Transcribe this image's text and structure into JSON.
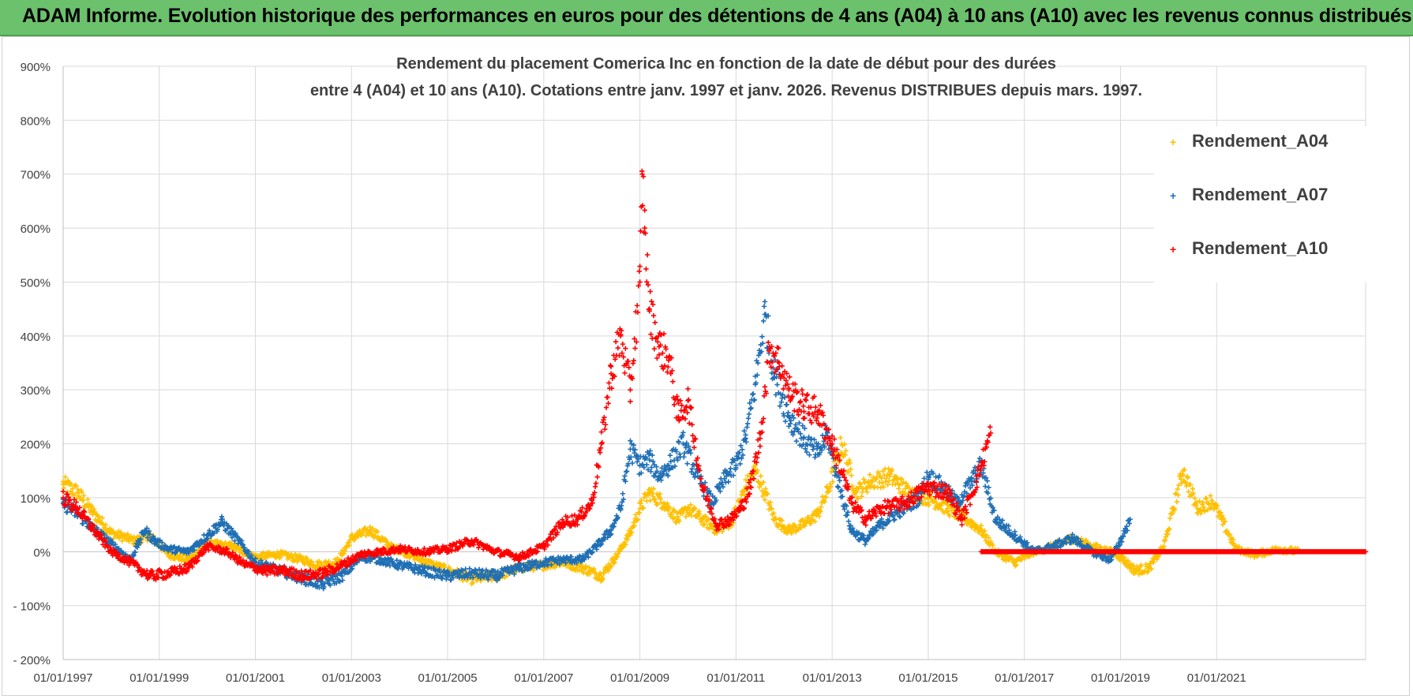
{
  "header": {
    "title": "ADAM Informe. Evolution historique des performances en euros pour des détentions de 4 ans (A04) à 10 ans (A10) avec les revenus connus distribués",
    "background_color": "#6cc16c"
  },
  "chart_data": {
    "type": "scatter",
    "title_line1": "Rendement du placement Comerica Inc en fonction de la date de début pour des durées",
    "title_line2": "entre 4 (A04) et 10 ans (A10).  Cotations entre janv. 1997 et janv. 2026. Revenus DISTRIBUES depuis mars. 1997.",
    "xlabel": "",
    "ylabel": "",
    "xlim": [
      1997.0,
      2024.1
    ],
    "ylim": [
      -200,
      900
    ],
    "y_ticks": [
      -200,
      -100,
      0,
      100,
      200,
      300,
      400,
      500,
      600,
      700,
      800,
      900
    ],
    "y_tick_labels": [
      "- 200%",
      "- 100%",
      "0%",
      "100%",
      "200%",
      "300%",
      "400%",
      "500%",
      "600%",
      "700%",
      "800%",
      "900%"
    ],
    "x_ticks": [
      1997,
      1999,
      2001,
      2003,
      2005,
      2007,
      2009,
      2011,
      2013,
      2015,
      2017,
      2019,
      2021
    ],
    "x_tick_labels": [
      "01/01/1997",
      "01/01/1999",
      "01/01/2001",
      "01/01/2003",
      "01/01/2005",
      "01/01/2007",
      "01/01/2009",
      "01/01/2011",
      "01/01/2013",
      "01/01/2015",
      "01/01/2017",
      "01/01/2019",
      "01/01/2021"
    ],
    "grid": true,
    "legend_position": "top-right",
    "marker": "+",
    "series": [
      {
        "name": "Rendement_A04",
        "color": "#ffc000",
        "x": [
          1997.0,
          1997.3,
          1997.6,
          1998.0,
          1998.5,
          1998.8,
          1999.2,
          1999.6,
          2000.0,
          2000.5,
          2001.0,
          2001.5,
          2002.0,
          2002.3,
          2002.7,
          2003.0,
          2003.4,
          2003.8,
          2004.2,
          2004.7,
          2005.0,
          2005.5,
          2006.0,
          2006.5,
          2007.0,
          2007.4,
          2007.8,
          2008.2,
          2008.5,
          2008.8,
          2009.0,
          2009.2,
          2009.5,
          2009.8,
          2010.0,
          2010.3,
          2010.6,
          2010.9,
          2011.2,
          2011.4,
          2011.6,
          2011.8,
          2012.1,
          2012.4,
          2012.7,
          2012.9,
          2013.2,
          2013.5,
          2013.8,
          2014.2,
          2014.6,
          2015.0,
          2015.4,
          2015.8,
          2016.1,
          2016.4,
          2016.8,
          2017.2,
          2017.6,
          2018.0,
          2018.4,
          2018.8,
          2019.0,
          2019.3,
          2019.6,
          2019.9,
          2020.1,
          2020.3,
          2020.6,
          2020.9,
          2021.1,
          2021.4,
          2021.8,
          2022.3,
          2022.7
        ],
        "y": [
          125,
          110,
          75,
          35,
          20,
          30,
          -5,
          -15,
          15,
          10,
          -10,
          -5,
          -15,
          -25,
          -20,
          25,
          40,
          10,
          -5,
          -25,
          -35,
          -50,
          -45,
          -30,
          -25,
          -20,
          -30,
          -45,
          -10,
          35,
          80,
          110,
          90,
          60,
          80,
          60,
          40,
          55,
          120,
          150,
          110,
          60,
          40,
          50,
          70,
          110,
          200,
          110,
          130,
          140,
          110,
          100,
          80,
          60,
          40,
          0,
          -20,
          0,
          10,
          25,
          10,
          0,
          -10,
          -35,
          -30,
          10,
          80,
          150,
          80,
          95,
          60,
          5,
          -5,
          5,
          0
        ]
      },
      {
        "name": "Rendement_A07",
        "color": "#1f6fb5",
        "x": [
          1997.0,
          1997.3,
          1997.6,
          1998.0,
          1998.4,
          1998.7,
          1998.9,
          1999.2,
          1999.6,
          2000.0,
          2000.3,
          2000.7,
          2001.0,
          2001.5,
          2002.0,
          2002.4,
          2002.8,
          2003.2,
          2003.6,
          2004.0,
          2004.5,
          2005.0,
          2005.5,
          2006.0,
          2006.5,
          2007.0,
          2007.4,
          2007.8,
          2008.1,
          2008.4,
          2008.6,
          2008.8,
          2009.0,
          2009.2,
          2009.4,
          2009.6,
          2009.9,
          2010.2,
          2010.5,
          2010.8,
          2011.0,
          2011.2,
          2011.4,
          2011.6,
          2011.8,
          2012.1,
          2012.4,
          2012.7,
          2012.9,
          2013.1,
          2013.4,
          2013.7,
          2014.0,
          2014.4,
          2014.8,
          2015.0,
          2015.3,
          2015.6,
          2015.9,
          2016.1,
          2016.4,
          2016.8,
          2017.2,
          2017.6,
          2018.0,
          2018.4,
          2018.8,
          2019.0,
          2019.2
        ],
        "y": [
          90,
          70,
          45,
          15,
          -15,
          40,
          20,
          5,
          0,
          30,
          55,
          15,
          -20,
          -35,
          -50,
          -60,
          -45,
          -10,
          -15,
          -25,
          -35,
          -45,
          -40,
          -45,
          -30,
          -20,
          -15,
          -15,
          10,
          40,
          80,
          190,
          160,
          170,
          140,
          160,
          200,
          140,
          90,
          140,
          160,
          210,
          310,
          440,
          330,
          250,
          210,
          180,
          220,
          140,
          40,
          20,
          50,
          75,
          100,
          140,
          120,
          90,
          130,
          160,
          60,
          30,
          0,
          10,
          25,
          0,
          -15,
          20,
          60
        ]
      },
      {
        "name": "Rendement_A10",
        "color": "#ff0000",
        "x": [
          1997.0,
          1997.3,
          1997.6,
          1998.0,
          1998.4,
          1998.8,
          1999.2,
          1999.6,
          2000.0,
          2000.4,
          2000.8,
          2001.2,
          2001.6,
          2002.0,
          2002.4,
          2002.8,
          2003.2,
          2003.6,
          2004.0,
          2004.5,
          2005.0,
          2005.5,
          2006.0,
          2006.5,
          2007.0,
          2007.4,
          2007.7,
          2008.0,
          2008.2,
          2008.4,
          2008.6,
          2008.8,
          2009.0,
          2009.05,
          2009.1,
          2009.2,
          2009.4,
          2009.6,
          2009.8,
          2010.0,
          2010.3,
          2010.6,
          2010.9,
          2011.1,
          2011.3,
          2011.5,
          2011.7,
          2011.9,
          2012.1,
          2012.4,
          2012.7,
          2013.0,
          2013.2,
          2013.4,
          2013.7,
          2014.0,
          2014.5,
          2015.0,
          2015.4,
          2015.7,
          2016.0,
          2016.3
        ],
        "y": [
          100,
          80,
          45,
          0,
          -20,
          -45,
          -40,
          -30,
          10,
          0,
          -25,
          -35,
          -35,
          -45,
          -40,
          -25,
          -5,
          0,
          5,
          0,
          5,
          20,
          0,
          -10,
          10,
          55,
          60,
          90,
          200,
          330,
          400,
          300,
          500,
          700,
          600,
          450,
          380,
          360,
          250,
          280,
          120,
          50,
          60,
          80,
          120,
          210,
          380,
          350,
          300,
          270,
          260,
          200,
          150,
          90,
          60,
          80,
          90,
          120,
          110,
          60,
          130,
          220
        ]
      }
    ],
    "a10_baseline": {
      "x_start": 2016.1,
      "x_end": 2024.1,
      "y": 0
    }
  }
}
